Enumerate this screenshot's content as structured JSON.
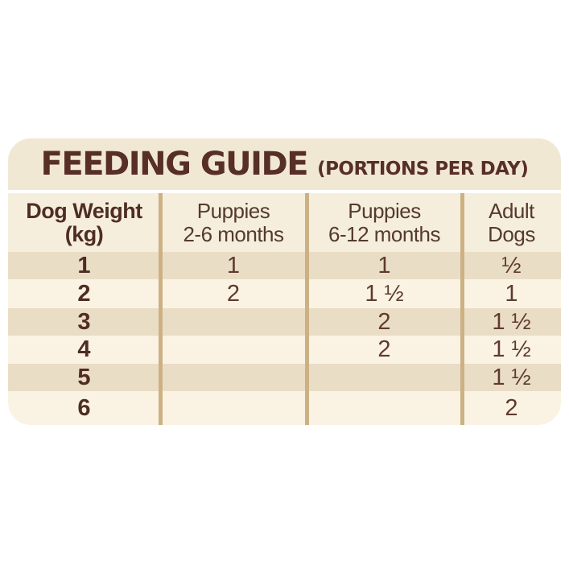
{
  "title": {
    "main": "FEEDING GUIDE",
    "suffix": "(PORTIONS PER DAY)"
  },
  "header": {
    "col1_line1": "Dog Weight",
    "col1_line2": "(kg)",
    "col2_line1": "Puppies",
    "col2_line2": "2-6 months",
    "col3_line1": "Puppies",
    "col3_line2": "6-12 months",
    "col4_line1": "Adult",
    "col4_line2": "Dogs"
  },
  "chart_data": {
    "type": "table",
    "title": "FEEDING GUIDE (PORTIONS PER DAY)",
    "columns": [
      "Dog Weight (kg)",
      "Puppies 2-6 months",
      "Puppies 6-12 months",
      "Adult Dogs"
    ],
    "rows": [
      [
        "1",
        "1",
        "1",
        "½"
      ],
      [
        "2",
        "2",
        "1 ½",
        "1"
      ],
      [
        "3",
        "",
        "2",
        "1 ½"
      ],
      [
        "4",
        "",
        "2",
        "1 ½"
      ],
      [
        "5",
        "",
        "",
        "1 ½"
      ],
      [
        "6",
        "",
        "",
        "2"
      ]
    ]
  },
  "colors": {
    "page_background": "#ffffff",
    "card_cream": "#f1e8d4",
    "header_background": "#f6eedd",
    "row_light": "#faf3e4",
    "row_stripe": "#eaddc5",
    "divider_tan": "#cbb184",
    "text_brown": "#572f27"
  }
}
